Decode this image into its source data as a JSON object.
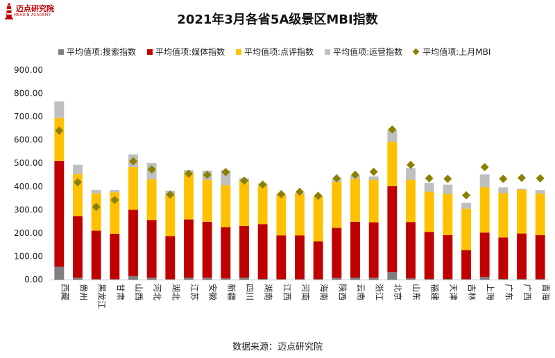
{
  "logo": {
    "text": "迈点研究院",
    "sub": "MEADIN ACADEMY"
  },
  "source": "数据来源：迈点研究院",
  "colors": {
    "search": "#7f7f7f",
    "media": "#c00000",
    "review": "#ffc000",
    "ops": "#bfbfbf",
    "last": "#8b8000",
    "logo": "#c00000"
  },
  "chart_data": {
    "type": "bar",
    "stacked": true,
    "title": "2021年3月各省5A级景区MBI指数",
    "ylim": [
      0,
      900
    ],
    "yticks": [
      "0.00",
      "100.00",
      "200.00",
      "300.00",
      "400.00",
      "500.00",
      "600.00",
      "700.00",
      "800.00",
      "900.00"
    ],
    "grid": false,
    "legend_position": "top",
    "categories": [
      "西藏",
      "贵州",
      "黑龙江",
      "甘肃",
      "山西",
      "河北",
      "湖北",
      "江苏",
      "安徽",
      "新疆",
      "四川",
      "湖南",
      "江西",
      "河南",
      "海南",
      "陕西",
      "云南",
      "浙江",
      "北京",
      "山东",
      "福建",
      "天津",
      "吉林",
      "上海",
      "广东",
      "广西",
      "青海"
    ],
    "series": [
      {
        "name": "平均值项:搜索指数",
        "key": "search",
        "kind": "bar",
        "values": [
          55,
          8,
          2,
          2,
          15,
          8,
          2,
          8,
          8,
          5,
          8,
          3,
          2,
          2,
          2,
          7,
          8,
          8,
          32,
          5,
          3,
          3,
          2,
          12,
          3,
          3,
          3
        ]
      },
      {
        "name": "平均值项:媒体指数",
        "key": "media",
        "kind": "bar",
        "values": [
          455,
          265,
          208,
          195,
          285,
          248,
          185,
          250,
          240,
          220,
          222,
          235,
          188,
          188,
          162,
          215,
          240,
          238,
          370,
          242,
          202,
          188,
          125,
          190,
          178,
          195,
          188
        ]
      },
      {
        "name": "平均值项:点评指数",
        "key": "review",
        "kind": "bar",
        "values": [
          185,
          180,
          160,
          178,
          183,
          175,
          180,
          202,
          180,
          180,
          190,
          165,
          172,
          178,
          192,
          198,
          185,
          182,
          190,
          182,
          172,
          177,
          178,
          195,
          190,
          188,
          178
        ]
      },
      {
        "name": "平均值项:运营指数",
        "key": "ops",
        "kind": "bar",
        "values": [
          70,
          40,
          15,
          10,
          55,
          70,
          15,
          10,
          40,
          65,
          15,
          10,
          5,
          5,
          5,
          15,
          15,
          15,
          50,
          50,
          38,
          40,
          25,
          55,
          25,
          5,
          15
        ]
      },
      {
        "name": "平均值项:上月MBI",
        "key": "last",
        "kind": "marker",
        "values": [
          640,
          418,
          312,
          342,
          508,
          473,
          365,
          455,
          450,
          462,
          425,
          408,
          367,
          377,
          360,
          435,
          450,
          463,
          645,
          493,
          435,
          433,
          362,
          483,
          433,
          437,
          435
        ]
      }
    ]
  }
}
